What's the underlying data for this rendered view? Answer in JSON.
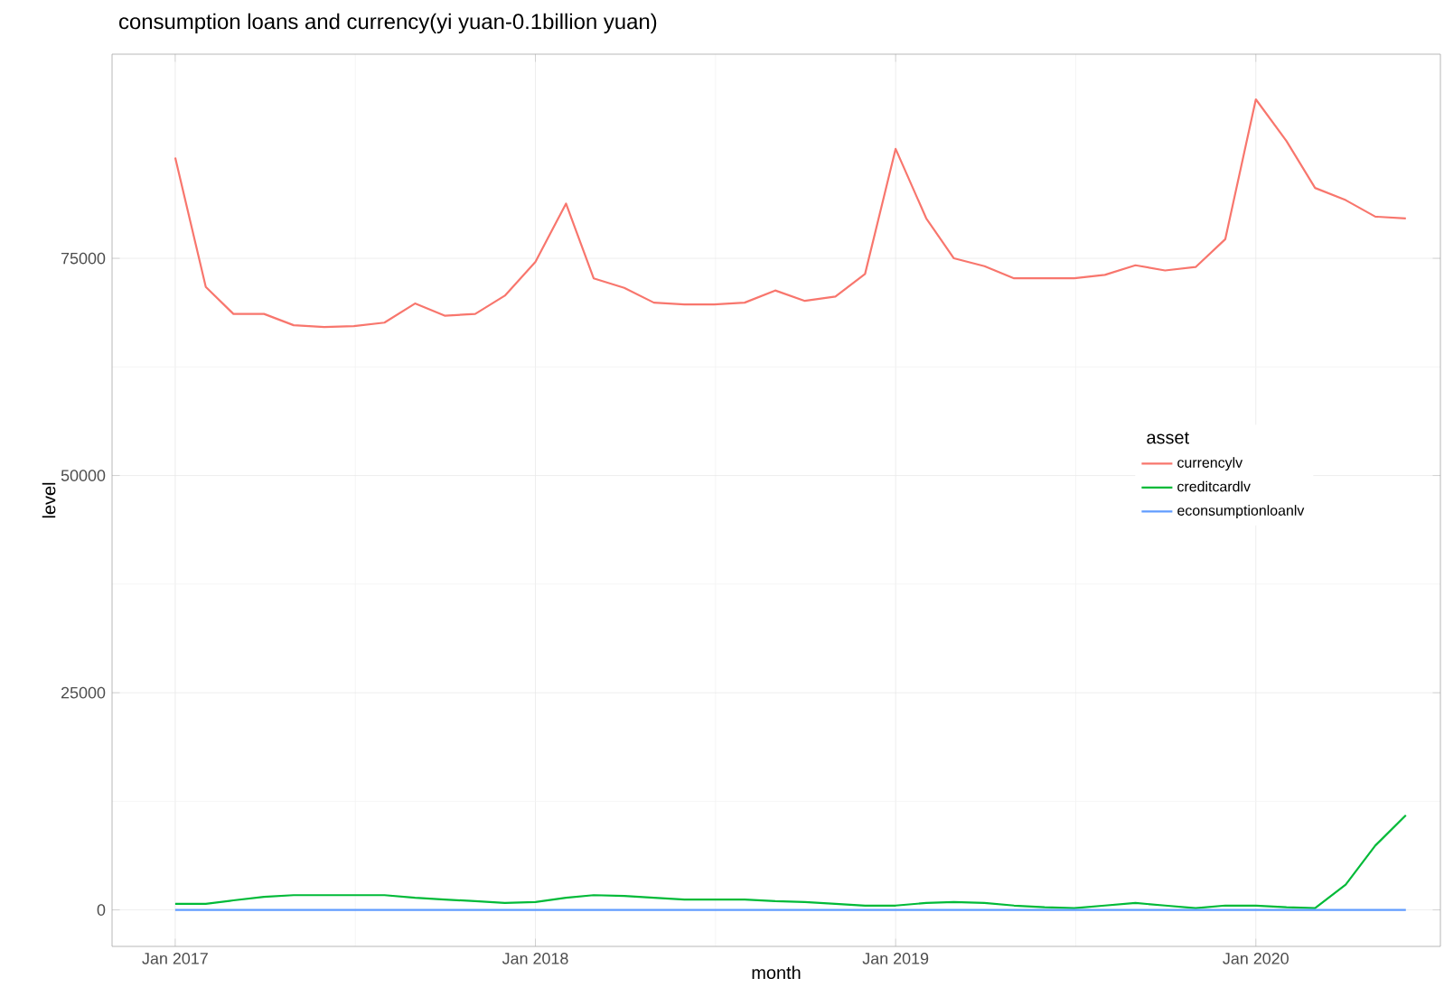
{
  "chart_data": {
    "type": "line",
    "title": "consumption loans and currency(yi yuan-0.1billion yuan)",
    "xlabel": "month",
    "ylabel": "level",
    "legend_title": "asset",
    "x": [
      "2017-01",
      "2017-02",
      "2017-03",
      "2017-04",
      "2017-05",
      "2017-06",
      "2017-07",
      "2017-08",
      "2017-09",
      "2017-10",
      "2017-11",
      "2017-12",
      "2018-01",
      "2018-02",
      "2018-03",
      "2018-04",
      "2018-05",
      "2018-06",
      "2018-07",
      "2018-08",
      "2018-09",
      "2018-10",
      "2018-11",
      "2018-12",
      "2019-01",
      "2019-02",
      "2019-03",
      "2019-04",
      "2019-05",
      "2019-06",
      "2019-07",
      "2019-08",
      "2019-09",
      "2019-10",
      "2019-11",
      "2019-12",
      "2020-01",
      "2020-02",
      "2020-03",
      "2020-04",
      "2020-05",
      "2020-06"
    ],
    "series": [
      {
        "name": "currencylv",
        "color": "#f8766d",
        "values": [
          86600,
          71700,
          68600,
          68600,
          67300,
          67100,
          67200,
          67600,
          69800,
          68400,
          68600,
          70700,
          74600,
          81300,
          72700,
          71600,
          69900,
          69700,
          69700,
          69900,
          71300,
          70100,
          70600,
          73200,
          87600,
          79600,
          75000,
          74100,
          72700,
          72700,
          72700,
          73100,
          74200,
          73600,
          74000,
          77200,
          93300,
          88500,
          83100,
          81700,
          79800,
          79600
        ]
      },
      {
        "name": "creditcardlv",
        "color": "#00ba38",
        "values": [
          700,
          700,
          1100,
          1500,
          1700,
          1700,
          1700,
          1700,
          1400,
          1200,
          1000,
          800,
          900,
          1400,
          1700,
          1600,
          1400,
          1200,
          1200,
          1200,
          1000,
          900,
          700,
          500,
          500,
          800,
          900,
          800,
          500,
          300,
          200,
          500,
          800,
          500,
          200,
          500,
          500,
          300,
          200,
          2900,
          7400,
          10900
        ]
      },
      {
        "name": "econsumptionloanlv",
        "color": "#619cff",
        "values": [
          0,
          0,
          0,
          0,
          0,
          0,
          0,
          0,
          0,
          0,
          0,
          0,
          0,
          0,
          0,
          0,
          0,
          0,
          0,
          0,
          0,
          0,
          0,
          0,
          0,
          0,
          0,
          0,
          0,
          0,
          0,
          0,
          0,
          0,
          0,
          0,
          0,
          0,
          0,
          0,
          0,
          0
        ]
      }
    ],
    "xlim": [
      "2016-10-29",
      "2020-07-06"
    ],
    "xticks": [
      {
        "value": "2017-01-01",
        "label": "Jan 2017"
      },
      {
        "value": "2018-01-01",
        "label": "Jan 2018"
      },
      {
        "value": "2019-01-01",
        "label": "Jan 2019"
      },
      {
        "value": "2020-01-01",
        "label": "Jan 2020"
      }
    ],
    "ylim": [
      -4200,
      98500
    ],
    "yticks": [
      0,
      25000,
      50000,
      75000
    ],
    "grid": true,
    "legend": "right",
    "marker": "none",
    "line_style": "solid"
  }
}
